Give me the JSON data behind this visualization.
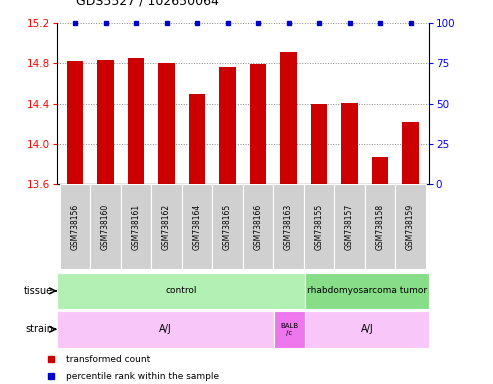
{
  "title": "GDS5527 / 102650064",
  "samples": [
    "GSM738156",
    "GSM738160",
    "GSM738161",
    "GSM738162",
    "GSM738164",
    "GSM738165",
    "GSM738166",
    "GSM738163",
    "GSM738155",
    "GSM738157",
    "GSM738158",
    "GSM738159"
  ],
  "bar_values": [
    14.82,
    14.83,
    14.85,
    14.8,
    14.5,
    14.76,
    14.79,
    14.91,
    14.4,
    14.41,
    13.87,
    14.22
  ],
  "bar_color": "#cc0000",
  "percentile_color": "#0000cc",
  "ylim_left": [
    13.6,
    15.2
  ],
  "yticks_left": [
    13.6,
    14.0,
    14.4,
    14.8,
    15.2
  ],
  "yticks_right": [
    0,
    25,
    50,
    75,
    100
  ],
  "tissue_groups": [
    {
      "label": "control",
      "start": 0,
      "end": 8,
      "color": "#b3f0b3"
    },
    {
      "label": "rhabdomyosarcoma tumor",
      "start": 8,
      "end": 12,
      "color": "#88dd88"
    }
  ],
  "strain_aj1": {
    "label": "A/J",
    "start": 0,
    "end": 7,
    "color": "#f9c6f9"
  },
  "strain_balb": {
    "label": "BALB\n/c",
    "start": 7,
    "end": 8,
    "color": "#ee77ee"
  },
  "strain_aj2": {
    "label": "A/J",
    "start": 8,
    "end": 12,
    "color": "#f9c6f9"
  },
  "sample_label_color": "#d0d0d0",
  "grid_color": "#888888",
  "background_color": "#ffffff"
}
